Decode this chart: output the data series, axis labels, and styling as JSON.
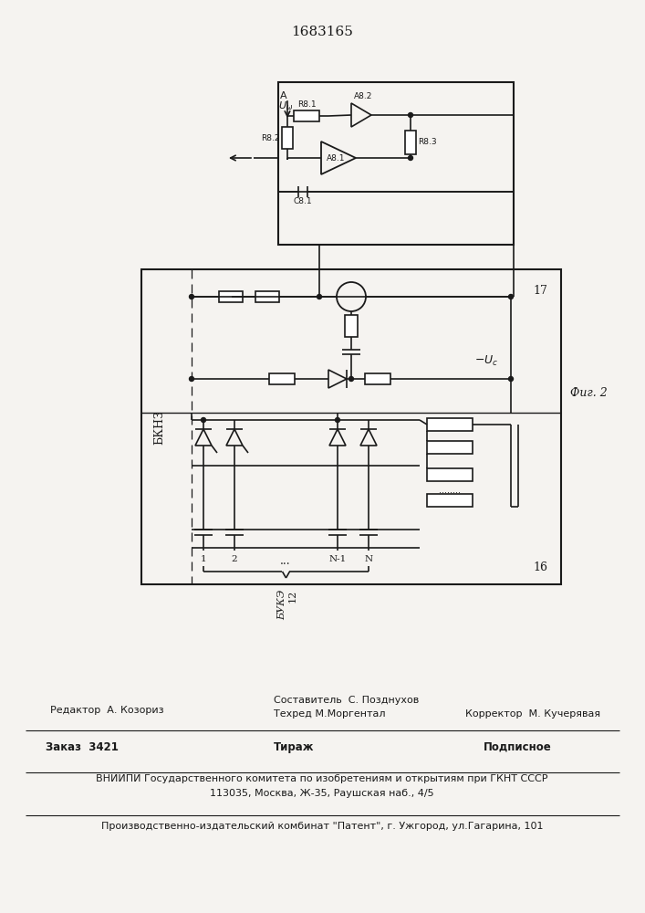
{
  "patent_number": "1683165",
  "fig_label": "Фиг. 2",
  "background_color": "#f5f3f0",
  "line_color": "#1a1a1a",
  "text_color": "#1a1a1a",
  "footer": {
    "editor": "Редактор  А. Козориз",
    "composer": "Составитель  С. Позднухов",
    "techred": "Техред М.Моргентал",
    "corrector": "Корректор  М. Кучерявая",
    "order": "Заказ  3421",
    "tirazh": "Тираж",
    "podpisnoe": "Подписное",
    "vnipi_line1": "ВНИИПИ Государственного комитета по изобретениям и открытиям при ГКНТ СССР",
    "vnipi_line2": "113035, Москва, Ж-35, Раушская наб., 4/5",
    "last_line": "Производственно-издательский комбинат \"Патент\", г. Ужгород, ул.Гагарина, 101"
  }
}
